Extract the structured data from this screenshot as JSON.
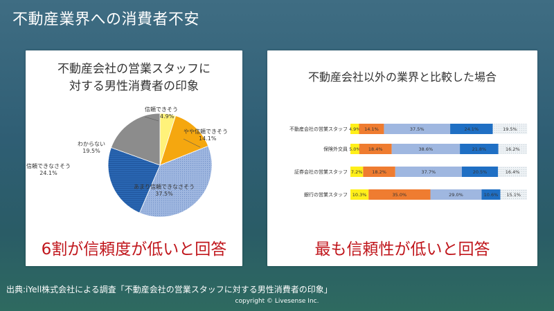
{
  "slide": {
    "title": "不動産業界への消費者不安",
    "source": "出典:iYell株式会社による調査「不動産会社の営業スタッフに対する男性消費者の印象」",
    "copyright": "copyright © Livesense Inc."
  },
  "left_panel": {
    "title_line1": "不動産会社の営業スタッフに",
    "title_line2": "対する男性消費者の印象",
    "caption": "6割が信頼度が低いと回答"
  },
  "right_panel": {
    "title": "不動産会社以外の業界と比較した場合",
    "caption": "最も信頼性が低いと回答"
  },
  "colors": {
    "very_trust": "#fff27a",
    "somewhat_trust": "#f5a70f",
    "not_so_trust": "#9fb7e0",
    "not_trust": "#2a67b3",
    "dont_know": "#8c8c8c",
    "bar_yellow": "#ffef1a",
    "bar_orange": "#ef7c30",
    "bar_lightblue": "#9fb7e0",
    "bar_blue": "#1f6fc4",
    "bar_dotted": "#e9eef2"
  },
  "chart_data": [
    {
      "type": "pie",
      "slices": [
        {
          "label": "信頼できそう",
          "value": 4.9,
          "value_label": "4.9%",
          "color": "#fff27a"
        },
        {
          "label": "やや信頼できそう",
          "value": 14.1,
          "value_label": "14.1%",
          "color": "#f5a70f"
        },
        {
          "label": "あまり信頼できなさそう",
          "value": 37.5,
          "value_label": "37.5%",
          "color": "#9fb7e0"
        },
        {
          "label": "信頼できなさそう",
          "value": 24.1,
          "value_label": "24.1%",
          "color": "#2a67b3"
        },
        {
          "label": "わからない",
          "value": 19.5,
          "value_label": "19.5%",
          "color": "#8c8c8c"
        }
      ]
    },
    {
      "type": "bar",
      "orientation": "horizontal-stacked-100",
      "categories": [
        "不動産会社の営業スタッフ",
        "保険外交員",
        "証券会社の営業スタッフ",
        "銀行の営業スタッフ"
      ],
      "series": [
        {
          "values": [
            4.9,
            5.0,
            7.2,
            10.3
          ],
          "color": "#ffef1a"
        },
        {
          "values": [
            14.1,
            18.4,
            18.2,
            35.0
          ],
          "color": "#ef7c30"
        },
        {
          "values": [
            37.5,
            38.6,
            37.7,
            29.0
          ],
          "color": "#9fb7e0"
        },
        {
          "values": [
            24.1,
            21.8,
            20.5,
            10.6
          ],
          "color": "#1f6fc4"
        },
        {
          "values": [
            19.5,
            16.2,
            16.4,
            15.1
          ],
          "color": "#e9eef2"
        }
      ],
      "value_labels": [
        [
          "4.9%",
          "14.1%",
          "37.5%",
          "24.1%",
          "19.5%"
        ],
        [
          "5.0%",
          "18.4%",
          "38.6%",
          "21.8%",
          "16.2%"
        ],
        [
          "7.2%",
          "18.2%",
          "37.7%",
          "20.5%",
          "16.4%"
        ],
        [
          "10.3%",
          "35.0%",
          "29.0%",
          "10.6%",
          "15.1%"
        ]
      ]
    }
  ]
}
